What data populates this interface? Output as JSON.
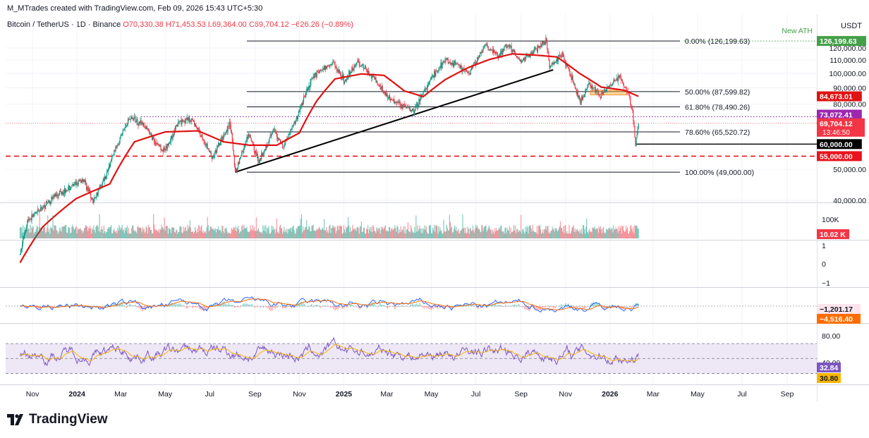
{
  "header": {
    "author_line": "M_MTrades created with TradingView.com, Feb 09, 2026 15:43 UTC+5:30",
    "symbol": "Bitcoin / TetherUS · 1D · Binance",
    "ohlc": "O70,330.38  H71,453.53  L69,364.00  C69,704.12  −626.26 (−0.89%)",
    "currency": "USDT"
  },
  "footer": {
    "brand": "TradingView",
    "logo_icon": "tradingview-logo-icon"
  },
  "colors": {
    "candle_up": "#089981",
    "candle_down": "#f23645",
    "ma": "#e01212",
    "macd_line": "#2962ff",
    "signal_line": "#ff6d00",
    "rsi_line": "#7e57c2",
    "rsi_ma": "#f7b500",
    "rsi_band": "#ede7f6",
    "ath_line": "#43a047",
    "support": "#e8141e"
  },
  "chart_data": {
    "type": "candlestick",
    "interval": "1D",
    "x_ticks": [
      "Nov",
      "2024",
      "Mar",
      "May",
      "Jul",
      "Sep",
      "Nov",
      "2025",
      "Mar",
      "May",
      "Jul",
      "Sep",
      "Nov",
      "2026",
      "Mar",
      "May",
      "Jul",
      "Sep"
    ],
    "y_ticks": [
      "120,000.00",
      "110,000.00",
      "100,000.00",
      "90,000.00",
      "80,000.00",
      "50,000.00",
      "40,000.00"
    ],
    "price_path": [
      [
        "2023-10-15",
        27000
      ],
      [
        "2023-10-25",
        34500
      ],
      [
        "2023-11-10",
        37000
      ],
      [
        "2023-12-05",
        42000
      ],
      [
        "2023-12-20",
        43500
      ],
      [
        "2024-01-10",
        46500
      ],
      [
        "2024-01-23",
        39500
      ],
      [
        "2024-02-10",
        48000
      ],
      [
        "2024-02-28",
        62000
      ],
      [
        "2024-03-14",
        73000
      ],
      [
        "2024-04-01",
        69000
      ],
      [
        "2024-04-17",
        61000
      ],
      [
        "2024-05-01",
        57000
      ],
      [
        "2024-05-21",
        71000
      ],
      [
        "2024-06-07",
        71500
      ],
      [
        "2024-07-05",
        54000
      ],
      [
        "2024-07-29",
        69500
      ],
      [
        "2024-08-05",
        49000
      ],
      [
        "2024-08-24",
        64000
      ],
      [
        "2024-09-06",
        53000
      ],
      [
        "2024-09-27",
        66000
      ],
      [
        "2024-10-10",
        59000
      ],
      [
        "2024-10-29",
        73000
      ],
      [
        "2024-11-13",
        90000
      ],
      [
        "2024-11-22",
        99500
      ],
      [
        "2024-12-05",
        103500
      ],
      [
        "2024-12-17",
        108300
      ],
      [
        "2025-01-02",
        94000
      ],
      [
        "2025-01-20",
        109000
      ],
      [
        "2025-02-10",
        97000
      ],
      [
        "2025-03-03",
        84000
      ],
      [
        "2025-04-07",
        76000
      ],
      [
        "2025-05-01",
        96000
      ],
      [
        "2025-05-22",
        110500
      ],
      [
        "2025-06-22",
        100000
      ],
      [
        "2025-07-14",
        122000
      ],
      [
        "2025-08-02",
        113000
      ],
      [
        "2025-08-14",
        124000
      ],
      [
        "2025-09-01",
        108000
      ],
      [
        "2025-09-18",
        117000
      ],
      [
        "2025-10-06",
        126199.63
      ],
      [
        "2025-10-10",
        104000
      ],
      [
        "2025-10-27",
        115000
      ],
      [
        "2025-11-21",
        81000
      ],
      [
        "2025-12-03",
        93000
      ],
      [
        "2025-12-18",
        85000
      ],
      [
        "2026-01-14",
        97000
      ],
      [
        "2026-01-25",
        88000
      ],
      [
        "2026-02-01",
        76000
      ],
      [
        "2026-02-05",
        60000
      ],
      [
        "2026-02-09",
        69704.12
      ]
    ],
    "moving_average": [
      [
        "2023-10-15",
        25500
      ],
      [
        "2023-11-15",
        33000
      ],
      [
        "2023-12-31",
        40500
      ],
      [
        "2024-02-15",
        45000
      ],
      [
        "2024-03-20",
        61000
      ],
      [
        "2024-05-01",
        65500
      ],
      [
        "2024-06-15",
        66000
      ],
      [
        "2024-07-20",
        61000
      ],
      [
        "2024-08-25",
        59500
      ],
      [
        "2024-10-01",
        59500
      ],
      [
        "2024-11-01",
        65000
      ],
      [
        "2024-11-25",
        82000
      ],
      [
        "2024-12-20",
        96000
      ],
      [
        "2025-01-25",
        99500
      ],
      [
        "2025-02-25",
        98500
      ],
      [
        "2025-03-25",
        88000
      ],
      [
        "2025-04-20",
        84500
      ],
      [
        "2025-05-20",
        95500
      ],
      [
        "2025-06-20",
        104000
      ],
      [
        "2025-07-20",
        110500
      ],
      [
        "2025-08-20",
        115000
      ],
      [
        "2025-09-20",
        114000
      ],
      [
        "2025-10-20",
        112500
      ],
      [
        "2025-11-20",
        100000
      ],
      [
        "2025-12-20",
        90500
      ],
      [
        "2026-01-20",
        88500
      ],
      [
        "2026-02-09",
        84673.01
      ]
    ],
    "series": [
      {
        "label": "84,673.01",
        "value": 84673.01
      },
      {
        "label": "73,072.41",
        "value": 73072.41
      },
      {
        "label": "69,704.12",
        "value": 69704.12,
        "countdown": "13:46:50"
      }
    ],
    "levels": [
      {
        "label": "0.00% (126,199.63)",
        "value": 126199.63
      },
      {
        "label": "50.00% (87,599.82)",
        "value": 87599.82
      },
      {
        "label": "61.80% (78,490.26)",
        "value": 78490.26
      },
      {
        "label": "78.60% (65,520.72)",
        "value": 65520.72
      },
      {
        "label": "100.00% (49,000.00)",
        "value": 49000
      }
    ],
    "price_tags": [
      {
        "label": "126,199.63",
        "value": 126199.63
      },
      {
        "label": "60,000.00",
        "value": 60000
      },
      {
        "label": "55,000.00",
        "value": 55000
      }
    ],
    "annotations": {
      "ath": "New ATH"
    },
    "trendline": [
      [
        "2024-08-05",
        49000
      ],
      [
        "2025-10-15",
        102500
      ]
    ],
    "resistance_zone": {
      "start": "2025-12-05",
      "end": "2026-01-25",
      "low": 85500,
      "high": 88500
    },
    "volume": {
      "tick": "100K",
      "last": "10.02 K"
    },
    "empty_pane": {
      "ticks": [
        "1",
        "0",
        "−1"
      ]
    },
    "macd": {
      "values": [
        "−1,201.17",
        "−4,516.40"
      ]
    },
    "rsi": {
      "ticks": [
        "80.00",
        "40.00"
      ],
      "band": [
        30,
        70
      ],
      "values": [
        "32.84",
        "30.80"
      ]
    }
  }
}
